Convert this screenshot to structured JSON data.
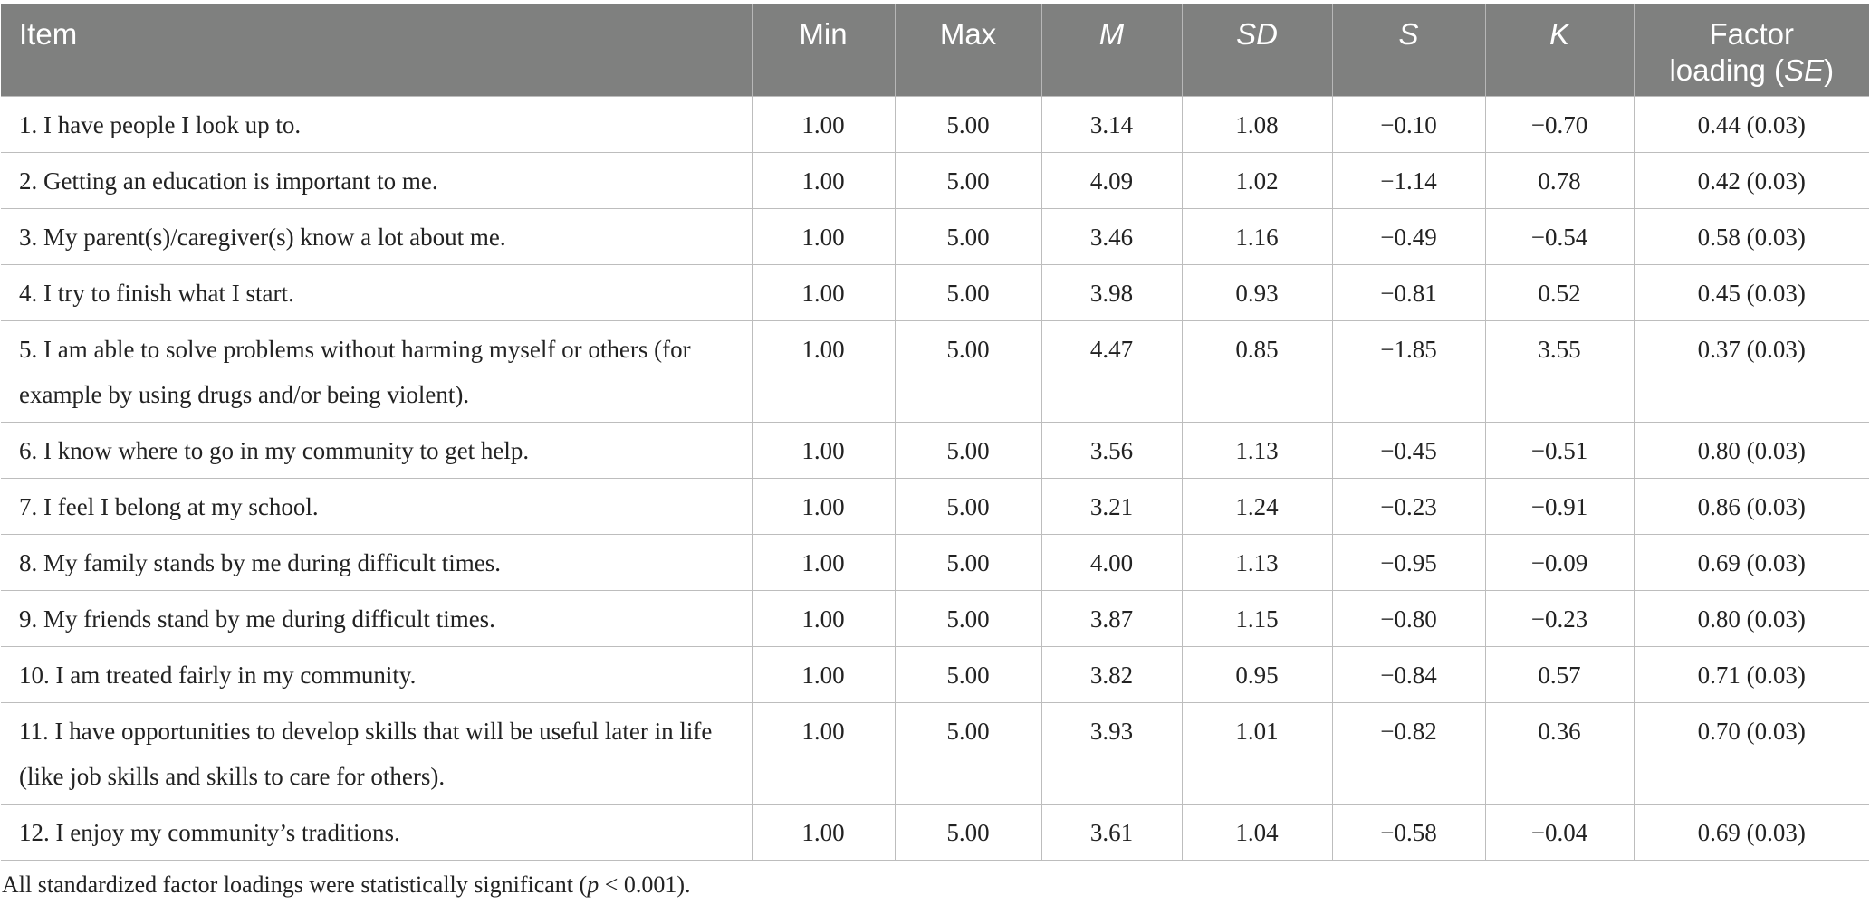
{
  "table": {
    "headers": {
      "item": "Item",
      "min": "Min",
      "max": "Max",
      "m": "M",
      "sd": "SD",
      "s": "S",
      "k": "K",
      "factor_line1": "Factor",
      "factor_line2_prefix": "loading (",
      "factor_line2_se": "SE",
      "factor_line2_suffix": ")"
    },
    "rows": [
      {
        "item": "1. I have people I look up to.",
        "min": "1.00",
        "max": "5.00",
        "m": "3.14",
        "sd": "1.08",
        "s": "−0.10",
        "k": "−0.70",
        "loading": "0.44 (0.03)"
      },
      {
        "item": "2. Getting an education is important to me.",
        "min": "1.00",
        "max": "5.00",
        "m": "4.09",
        "sd": "1.02",
        "s": "−1.14",
        "k": "0.78",
        "loading": "0.42 (0.03)"
      },
      {
        "item": "3. My parent(s)/caregiver(s) know a lot about me.",
        "min": "1.00",
        "max": "5.00",
        "m": "3.46",
        "sd": "1.16",
        "s": "−0.49",
        "k": "−0.54",
        "loading": "0.58 (0.03)"
      },
      {
        "item": "4. I try to finish what I start.",
        "min": "1.00",
        "max": "5.00",
        "m": "3.98",
        "sd": "0.93",
        "s": "−0.81",
        "k": "0.52",
        "loading": "0.45 (0.03)"
      },
      {
        "item": "5. I am able to solve problems without harming myself or others (for example by using drugs and/or being violent).",
        "min": "1.00",
        "max": "5.00",
        "m": "4.47",
        "sd": "0.85",
        "s": "−1.85",
        "k": "3.55",
        "loading": "0.37 (0.03)"
      },
      {
        "item": "6. I know where to go in my community to get help.",
        "min": "1.00",
        "max": "5.00",
        "m": "3.56",
        "sd": "1.13",
        "s": "−0.45",
        "k": "−0.51",
        "loading": "0.80 (0.03)"
      },
      {
        "item": "7. I feel I belong at my school.",
        "min": "1.00",
        "max": "5.00",
        "m": "3.21",
        "sd": "1.24",
        "s": "−0.23",
        "k": "−0.91",
        "loading": "0.86 (0.03)"
      },
      {
        "item": "8. My family stands by me during difficult times.",
        "min": "1.00",
        "max": "5.00",
        "m": "4.00",
        "sd": "1.13",
        "s": "−0.95",
        "k": "−0.09",
        "loading": "0.69 (0.03)"
      },
      {
        "item": "9. My friends stand by me during difficult times.",
        "min": "1.00",
        "max": "5.00",
        "m": "3.87",
        "sd": "1.15",
        "s": "−0.80",
        "k": "−0.23",
        "loading": "0.80 (0.03)"
      },
      {
        "item": "10. I am treated fairly in my community.",
        "min": "1.00",
        "max": "5.00",
        "m": "3.82",
        "sd": "0.95",
        "s": "−0.84",
        "k": "0.57",
        "loading": "0.71 (0.03)"
      },
      {
        "item": "11. I have opportunities to develop skills that will be useful later in life (like job skills and skills to care for others).",
        "min": "1.00",
        "max": "5.00",
        "m": "3.93",
        "sd": "1.01",
        "s": "−0.82",
        "k": "0.36",
        "loading": "0.70 (0.03)"
      },
      {
        "item": "12. I enjoy my community’s traditions.",
        "min": "1.00",
        "max": "5.00",
        "m": "3.61",
        "sd": "1.04",
        "s": "−0.58",
        "k": "−0.04",
        "loading": "0.69 (0.03)"
      }
    ]
  },
  "footnote": {
    "prefix": "All standardized factor loadings were statistically significant (",
    "p": "p",
    "suffix": " < 0.001)."
  }
}
